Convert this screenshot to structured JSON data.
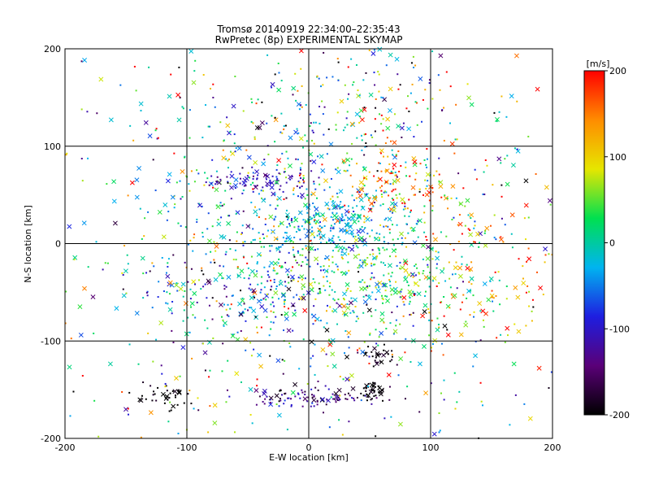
{
  "chart_data": {
    "type": "scatter",
    "title": "Tromsø 20140919 22:34:00–22:35:43",
    "subtitle": "RwPretec (8p) EXPERIMENTAL SKYMAP",
    "xlabel": "E-W location [km]",
    "ylabel": "N-S location [km]",
    "xlim": [
      -200,
      200
    ],
    "ylim": [
      -200,
      200
    ],
    "xticks": [
      -200,
      -100,
      0,
      100,
      200
    ],
    "yticks": [
      -200,
      -100,
      0,
      100,
      200
    ],
    "grid": true,
    "colorbar": {
      "label": "[m/s]",
      "min": -200,
      "max": 200,
      "ticks": [
        -200,
        -100,
        0,
        100,
        200
      ],
      "colormap": [
        "#000000",
        "#5a0078",
        "#1e1ee0",
        "#00b4f0",
        "#00e050",
        "#e6e600",
        "#ff8c00",
        "#ff0000"
      ]
    },
    "markers": [
      "cross",
      "dot"
    ],
    "points_per_cluster_note": "",
    "clusters": [
      {
        "cx": 0,
        "cy": 10,
        "sx": 70,
        "sy": 70,
        "v": 0,
        "vs": 70,
        "n": 700
      },
      {
        "cx": 20,
        "cy": 20,
        "sx": 30,
        "sy": 15,
        "v": -30,
        "vs": 30,
        "n": 180
      },
      {
        "cx": -40,
        "cy": 65,
        "sx": 20,
        "sy": 6,
        "v": -110,
        "vs": 20,
        "n": 80
      },
      {
        "cx": 70,
        "cy": 60,
        "sx": 25,
        "sy": 25,
        "v": 150,
        "vs": 50,
        "n": 120
      },
      {
        "cx": 60,
        "cy": -35,
        "sx": 40,
        "sy": 25,
        "v": 30,
        "vs": 40,
        "n": 150
      },
      {
        "cx": 140,
        "cy": -40,
        "sx": 35,
        "sy": 40,
        "v": 120,
        "vs": 80,
        "n": 120
      },
      {
        "cx": 0,
        "cy": -158,
        "sx": 30,
        "sy": 6,
        "v": -140,
        "vs": 40,
        "n": 100
      },
      {
        "cx": 52,
        "cy": -153,
        "sx": 5,
        "sy": 5,
        "v": -200,
        "vs": 10,
        "n": 35
      },
      {
        "cx": 55,
        "cy": -115,
        "sx": 8,
        "sy": 6,
        "v": -200,
        "vs": 20,
        "n": 30
      },
      {
        "cx": -120,
        "cy": -155,
        "sx": 10,
        "sy": 8,
        "v": -200,
        "vs": 15,
        "n": 35
      },
      {
        "cx": -50,
        "cy": -45,
        "sx": 40,
        "sy": 20,
        "v": -60,
        "vs": 90,
        "n": 150
      },
      {
        "cx": 30,
        "cy": 150,
        "sx": 60,
        "sy": 40,
        "v": 20,
        "vs": 120,
        "n": 150
      },
      {
        "cx": 0,
        "cy": 0,
        "sx": 170,
        "sy": 170,
        "v": 0,
        "vs": 120,
        "n": 700
      }
    ]
  }
}
